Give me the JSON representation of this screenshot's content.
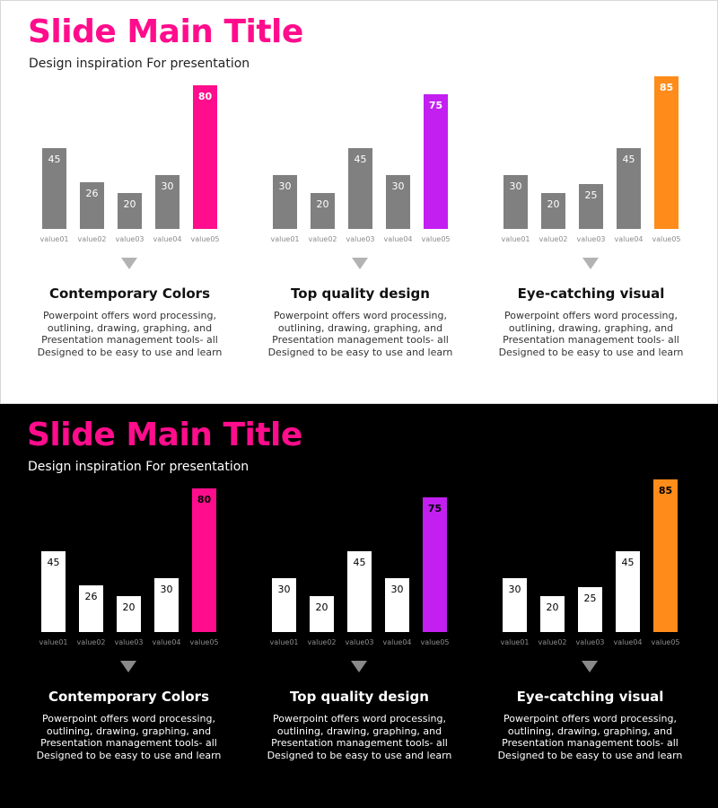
{
  "slides": [
    {
      "theme": "light",
      "title": "Slide Main Title",
      "subtitle": "Design inspiration For presentation",
      "base_bar_color": "#808080",
      "base_value_color": "#ffffff",
      "accent_value_color": "#ffffff",
      "panels": [
        {
          "heading": "Contemporary Colors",
          "description": "Powerpoint offers word processing, outlining, drawing, graphing, and Presentation management tools- all Designed to be easy to use and learn"
        },
        {
          "heading": "Top quality design",
          "description": "Powerpoint offers word processing, outlining, drawing, graphing, and Presentation management tools- all Designed to be easy to use and learn"
        },
        {
          "heading": "Eye-catching visual",
          "description": "Powerpoint offers word processing, outlining, drawing, graphing, and Presentation management tools- all Designed to be easy to use and learn"
        }
      ]
    },
    {
      "theme": "dark",
      "title": "Slide Main Title",
      "subtitle": "Design inspiration For presentation",
      "base_bar_color": "#ffffff",
      "base_value_color": "#000000",
      "accent_value_color": "#000000",
      "panels": [
        {
          "heading": "Contemporary Colors",
          "description": "Powerpoint offers word processing, outlining, drawing, graphing, and Presentation management tools- all Designed to be easy to use and learn"
        },
        {
          "heading": "Top quality design",
          "description": "Powerpoint offers word processing, outlining, drawing, graphing, and Presentation management tools- all Designed to be easy to use and learn"
        },
        {
          "heading": "Eye-catching visual",
          "description": "Powerpoint offers word processing, outlining, drawing, graphing, and Presentation management tools- all Designed to be easy to use and learn"
        }
      ]
    }
  ],
  "chart_data": [
    {
      "type": "bar",
      "slide": "light",
      "title": "Contemporary Colors",
      "categories": [
        "value01",
        "value02",
        "value03",
        "value04",
        "value05"
      ],
      "values": [
        45,
        26,
        20,
        30,
        80
      ],
      "ylim": [
        0,
        100
      ],
      "highlight_index": 4,
      "highlight_color": "#ff0d8c",
      "xlabel": "",
      "ylabel": ""
    },
    {
      "type": "bar",
      "slide": "light",
      "title": "Top quality design",
      "categories": [
        "value01",
        "value02",
        "value03",
        "value04",
        "value05"
      ],
      "values": [
        30,
        20,
        45,
        30,
        75
      ],
      "ylim": [
        0,
        100
      ],
      "highlight_index": 4,
      "highlight_color": "#c21ff0",
      "xlabel": "",
      "ylabel": ""
    },
    {
      "type": "bar",
      "slide": "light",
      "title": "Eye-catching visual",
      "categories": [
        "value01",
        "value02",
        "value03",
        "value04",
        "value05"
      ],
      "values": [
        30,
        20,
        25,
        45,
        85
      ],
      "ylim": [
        0,
        100
      ],
      "highlight_index": 4,
      "highlight_color": "#ff8c1a",
      "xlabel": "",
      "ylabel": ""
    },
    {
      "type": "bar",
      "slide": "dark",
      "title": "Contemporary Colors",
      "categories": [
        "value01",
        "value02",
        "value03",
        "value04",
        "value05"
      ],
      "values": [
        45,
        26,
        20,
        30,
        80
      ],
      "ylim": [
        0,
        100
      ],
      "highlight_index": 4,
      "highlight_color": "#ff0d8c",
      "xlabel": "",
      "ylabel": ""
    },
    {
      "type": "bar",
      "slide": "dark",
      "title": "Top quality design",
      "categories": [
        "value01",
        "value02",
        "value03",
        "value04",
        "value05"
      ],
      "values": [
        30,
        20,
        45,
        30,
        75
      ],
      "ylim": [
        0,
        100
      ],
      "highlight_index": 4,
      "highlight_color": "#c21ff0",
      "xlabel": "",
      "ylabel": ""
    },
    {
      "type": "bar",
      "slide": "dark",
      "title": "Eye-catching visual",
      "categories": [
        "value01",
        "value02",
        "value03",
        "value04",
        "value05"
      ],
      "values": [
        30,
        20,
        25,
        45,
        85
      ],
      "ylim": [
        0,
        100
      ],
      "highlight_index": 4,
      "highlight_color": "#ff8c1a",
      "xlabel": "",
      "ylabel": ""
    }
  ]
}
